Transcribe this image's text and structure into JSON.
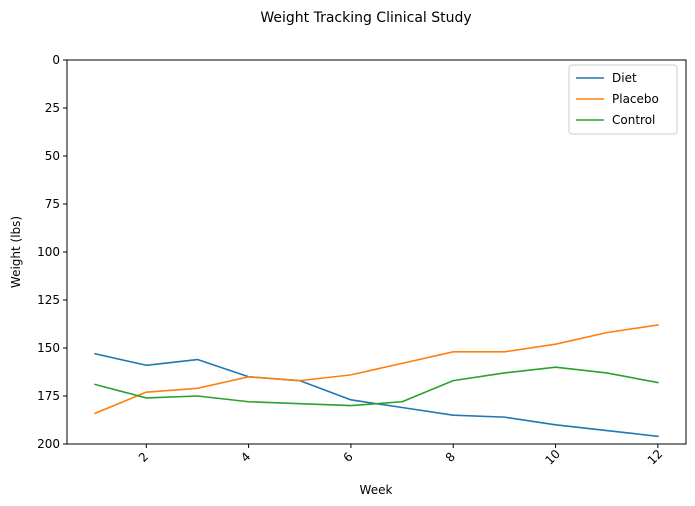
{
  "chart_data": {
    "type": "line",
    "title": "Weight Tracking Clinical Study",
    "xlabel": "Week",
    "ylabel": "Weight (lbs)",
    "x": [
      1,
      2,
      3,
      4,
      5,
      6,
      7,
      8,
      9,
      10,
      11,
      12
    ],
    "xlim": [
      0.45,
      12.55
    ],
    "ylim": [
      200,
      0
    ],
    "y_inverted": true,
    "x_ticks": [
      2,
      4,
      6,
      8,
      10,
      12
    ],
    "x_tick_labels": [
      "2",
      "4",
      "6",
      "8",
      "10",
      "12"
    ],
    "x_tick_rotation_deg": 45,
    "y_ticks": [
      0,
      25,
      50,
      75,
      100,
      125,
      150,
      175,
      200
    ],
    "y_tick_labels": [
      "0",
      "25",
      "50",
      "75",
      "100",
      "125",
      "150",
      "175",
      "200"
    ],
    "grid": false,
    "legend_position": "top-right",
    "series": [
      {
        "name": "Diet",
        "color": "#1f77b4",
        "values": [
          153,
          159,
          156,
          165,
          167,
          177,
          181,
          185,
          186,
          190,
          193,
          196
        ]
      },
      {
        "name": "Placebo",
        "color": "#ff7f0e",
        "values": [
          184,
          173,
          171,
          165,
          167,
          164,
          158,
          152,
          152,
          148,
          142,
          138
        ]
      },
      {
        "name": "Control",
        "color": "#2ca02c",
        "values": [
          169,
          176,
          175,
          178,
          179,
          180,
          178,
          167,
          163,
          160,
          163,
          168
        ]
      }
    ]
  }
}
